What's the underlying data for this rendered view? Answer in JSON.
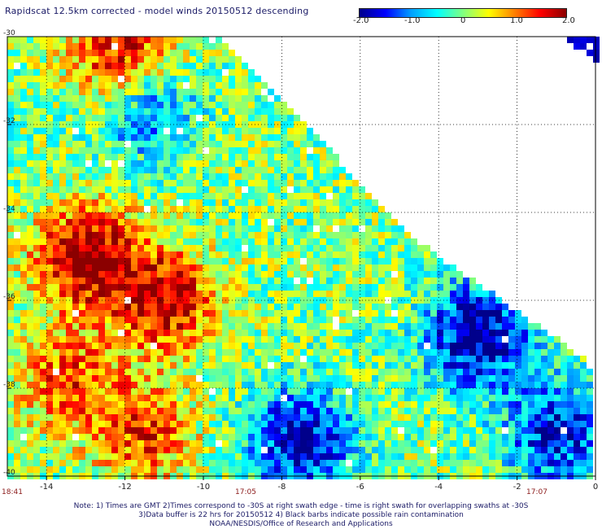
{
  "title": "Rapidscat 12.5km corrected - model winds 20150512 descending",
  "colorbar": {
    "labels": [
      "-2.0",
      "-1.0",
      "0",
      "1.0",
      "2.0"
    ],
    "min": -2.0,
    "max": 2.0,
    "colors": [
      "#00008b",
      "#0000ff",
      "#00a0ff",
      "#00ffff",
      "#80ff80",
      "#ffff00",
      "#ff8000",
      "#ff0000",
      "#8b0000"
    ]
  },
  "axes": {
    "x_ticks": [
      "-14",
      "-12",
      "-10",
      "-8",
      "-6",
      "-4",
      "-2",
      "0"
    ],
    "y_ticks": [
      "-30",
      "-32",
      "-34",
      "-36",
      "-38",
      "-40"
    ],
    "xlim": [
      -15,
      0
    ],
    "ylim": [
      -40,
      -30
    ],
    "grid": true
  },
  "times": [
    "18:41",
    "17:05",
    "17:07"
  ],
  "notes": [
    "Note: 1) Times are GMT 2)Times correspond to -30S at right swath edge - time is right swath for overlapping swaths at -30S",
    "3)Data buffer is 22 hrs for 20150512 4) Black barbs indicate possible rain contamination",
    "NOAA/NESDIS/Office of Research and Applications"
  ],
  "features": {
    "positive_anomalies": [
      {
        "lon": -13.0,
        "lat": -35.0,
        "value": 2.0
      },
      {
        "lon": -11.0,
        "lat": -36.0,
        "value": 1.8
      },
      {
        "lon": -12.0,
        "lat": -30.5,
        "value": 2.0
      },
      {
        "lon": -13.5,
        "lat": -37.8,
        "value": 1.2
      },
      {
        "lon": -11.5,
        "lat": -39.0,
        "value": 1.3
      }
    ],
    "negative_anomalies": [
      {
        "lon": -3.0,
        "lat": -36.8,
        "value": -2.0
      },
      {
        "lon": -7.5,
        "lat": -39.2,
        "value": -1.8
      },
      {
        "lon": -1.0,
        "lat": -39.0,
        "value": -1.6
      },
      {
        "lon": -11.5,
        "lat": -31.5,
        "value": -1.5
      }
    ]
  }
}
